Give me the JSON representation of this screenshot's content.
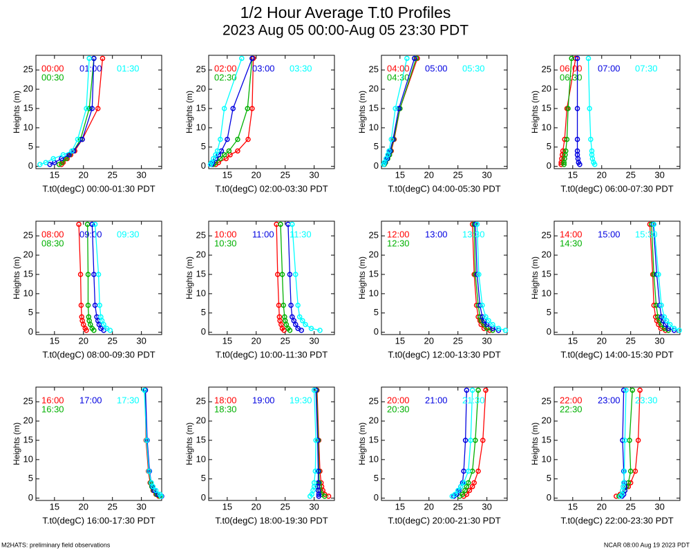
{
  "header": {
    "title": "1/2 Hour Average T.t0 Profiles",
    "subtitle": "2023 Aug 05 00:00-Aug 05 23:30 PDT"
  },
  "footer": {
    "left": "M2HATS: preliminary field observations",
    "right": "NCAR 08:00 Aug 19 2023 PDT"
  },
  "chart_data": [
    {
      "type": "line",
      "xlabel": "T.t0(degC) 00:00-01:30 PDT",
      "ylabel": "Heights (m)",
      "xlim": [
        11.8,
        33.5
      ],
      "ylim": [
        -0.6,
        28.8
      ],
      "xticks": [
        15,
        20,
        25,
        30
      ],
      "yticks": [
        0,
        5,
        10,
        15,
        20,
        25
      ],
      "heights": [
        0.5,
        1,
        2,
        3,
        4,
        7,
        15,
        28
      ],
      "series": [
        {
          "name": "00:00",
          "color": "#ff0000",
          "x": [
            16.2,
            16.5,
            17.2,
            17.8,
            18.5,
            19.8,
            22.5,
            23.3
          ]
        },
        {
          "name": "00:30",
          "color": "#00b000",
          "x": [
            15.8,
            16.3,
            17.0,
            17.6,
            18.3,
            19.5,
            21.0,
            21.8
          ]
        },
        {
          "name": "01:00",
          "color": "#0000e0",
          "x": [
            14.2,
            15.0,
            16.2,
            17.5,
            18.3,
            19.8,
            21.5,
            21.8
          ]
        },
        {
          "name": "01:30",
          "color": "#00ffff",
          "x": [
            12.5,
            13.5,
            14.8,
            16.5,
            18.0,
            19.0,
            20.5,
            21.0
          ]
        }
      ]
    },
    {
      "type": "line",
      "xlabel": "T.t0(degC) 02:00-03:30 PDT",
      "ylabel": "Heights (m)",
      "xlim": [
        11.8,
        33.5
      ],
      "ylim": [
        -0.6,
        28.8
      ],
      "xticks": [
        15,
        20,
        25,
        30
      ],
      "yticks": [
        0,
        5,
        10,
        15,
        20,
        25
      ],
      "heights": [
        0.5,
        1,
        2,
        3,
        4,
        7,
        15,
        28
      ],
      "series": [
        {
          "name": "02:00",
          "color": "#ff0000",
          "x": [
            13.0,
            13.5,
            14.8,
            15.5,
            16.8,
            18.6,
            19.3,
            19.5
          ]
        },
        {
          "name": "02:30",
          "color": "#00b000",
          "x": [
            12.6,
            13.0,
            13.8,
            14.5,
            15.3,
            16.8,
            18.5,
            19.3
          ]
        },
        {
          "name": "03:00",
          "color": "#0000e0",
          "x": [
            12.3,
            12.5,
            13.0,
            13.5,
            14.0,
            15.0,
            16.0,
            19.3
          ]
        },
        {
          "name": "03:30",
          "color": "#00ffff",
          "x": [
            12.1,
            12.3,
            12.6,
            13.0,
            13.3,
            13.8,
            14.5,
            17.5
          ]
        }
      ]
    },
    {
      "type": "line",
      "xlabel": "T.t0(degC) 04:00-05:30 PDT",
      "ylabel": "Heights (m)",
      "xlim": [
        11.8,
        33.5
      ],
      "ylim": [
        -0.6,
        28.8
      ],
      "xticks": [
        15,
        20,
        25,
        30
      ],
      "yticks": [
        0,
        5,
        10,
        15,
        20,
        25
      ],
      "heights": [
        0.5,
        1,
        2,
        3,
        4,
        7,
        15,
        28
      ],
      "series": [
        {
          "name": "04:00",
          "color": "#ff0000",
          "x": [
            12.3,
            12.5,
            12.8,
            13.2,
            13.5,
            14.0,
            15.0,
            18.0
          ]
        },
        {
          "name": "04:30",
          "color": "#00b000",
          "x": [
            12.3,
            12.5,
            12.9,
            13.2,
            13.4,
            13.9,
            15.0,
            17.8
          ]
        },
        {
          "name": "05:00",
          "color": "#0000e0",
          "x": [
            12.2,
            12.4,
            12.8,
            13.0,
            13.3,
            13.8,
            14.8,
            17.5
          ]
        },
        {
          "name": "05:30",
          "color": "#00ffff",
          "x": [
            12.2,
            12.3,
            12.6,
            12.9,
            13.1,
            13.5,
            14.2,
            16.2
          ]
        }
      ]
    },
    {
      "type": "line",
      "xlabel": "T.t0(degC) 06:00-07:30 PDT",
      "ylabel": "Heights (m)",
      "xlim": [
        11.8,
        33.5
      ],
      "ylim": [
        -0.6,
        28.8
      ],
      "xticks": [
        15,
        20,
        25,
        30
      ],
      "yticks": [
        0,
        5,
        10,
        15,
        20,
        25
      ],
      "heights": [
        0.5,
        1,
        2,
        3,
        4,
        7,
        15,
        28
      ],
      "series": [
        {
          "name": "06:00",
          "color": "#ff0000",
          "x": [
            13.0,
            13.0,
            13.1,
            13.2,
            13.3,
            13.6,
            14.0,
            15.5
          ]
        },
        {
          "name": "06:30",
          "color": "#00b000",
          "x": [
            13.5,
            13.5,
            13.6,
            13.7,
            13.8,
            14.0,
            14.2,
            14.8
          ]
        },
        {
          "name": "07:00",
          "color": "#0000e0",
          "x": [
            16.2,
            16.0,
            15.9,
            15.8,
            15.8,
            15.8,
            15.8,
            15.8
          ]
        },
        {
          "name": "07:30",
          "color": "#00ffff",
          "x": [
            18.8,
            18.6,
            18.4,
            18.3,
            18.3,
            18.1,
            17.9,
            17.7
          ]
        }
      ]
    },
    {
      "type": "line",
      "xlabel": "T.t0(degC) 08:00-09:30 PDT",
      "ylabel": "Heights (m)",
      "xlim": [
        11.8,
        33.5
      ],
      "ylim": [
        -0.6,
        28.8
      ],
      "xticks": [
        15,
        20,
        25,
        30
      ],
      "yticks": [
        0,
        5,
        10,
        15,
        20,
        25
      ],
      "heights": [
        0.5,
        1,
        2,
        3,
        4,
        7,
        15,
        28
      ],
      "series": [
        {
          "name": "08:00",
          "color": "#ff0000",
          "x": [
            20.5,
            20.3,
            20.0,
            19.8,
            19.7,
            19.6,
            19.5,
            19.2
          ]
        },
        {
          "name": "08:30",
          "color": "#00b000",
          "x": [
            21.8,
            21.5,
            21.2,
            21.0,
            20.9,
            20.8,
            20.8,
            20.7
          ]
        },
        {
          "name": "09:00",
          "color": "#0000e0",
          "x": [
            23.5,
            23.0,
            22.7,
            22.5,
            22.3,
            22.0,
            21.8,
            21.5
          ]
        },
        {
          "name": "09:30",
          "color": "#00ffff",
          "x": [
            24.6,
            24.0,
            23.5,
            23.2,
            23.0,
            22.8,
            22.6,
            22.0
          ]
        }
      ]
    },
    {
      "type": "line",
      "xlabel": "T.t0(degC) 10:00-11:30 PDT",
      "ylabel": "Heights (m)",
      "xlim": [
        11.8,
        33.5
      ],
      "ylim": [
        -0.6,
        28.8
      ],
      "xticks": [
        15,
        20,
        25,
        30
      ],
      "yticks": [
        0,
        5,
        10,
        15,
        20,
        25
      ],
      "heights": [
        0.5,
        1,
        2,
        3,
        4,
        7,
        15,
        28
      ],
      "series": [
        {
          "name": "10:00",
          "color": "#ff0000",
          "x": [
            24.8,
            24.5,
            24.3,
            24.1,
            24.0,
            23.9,
            23.7,
            23.5
          ]
        },
        {
          "name": "10:30",
          "color": "#00b000",
          "x": [
            25.8,
            25.5,
            25.2,
            25.0,
            24.9,
            24.7,
            24.5,
            24.2
          ]
        },
        {
          "name": "11:00",
          "color": "#0000e0",
          "x": [
            27.8,
            27.2,
            26.8,
            26.5,
            26.2,
            26.0,
            25.8,
            25.5
          ]
        },
        {
          "name": "11:30",
          "color": "#00ffff",
          "x": [
            31.0,
            29.5,
            28.5,
            28.0,
            27.5,
            27.2,
            26.8,
            26.2
          ]
        }
      ]
    },
    {
      "type": "line",
      "xlabel": "T.t0(degC) 12:00-13:30 PDT",
      "ylabel": "Heights (m)",
      "xlim": [
        11.8,
        33.5
      ],
      "ylim": [
        -0.6,
        28.8
      ],
      "xticks": [
        15,
        20,
        25,
        30
      ],
      "yticks": [
        0,
        5,
        10,
        15,
        20,
        25
      ],
      "heights": [
        0.5,
        1,
        2,
        3,
        4,
        7,
        15,
        28
      ],
      "series": [
        {
          "name": "12:00",
          "color": "#ff0000",
          "x": [
            30.5,
            29.5,
            29.0,
            28.8,
            28.5,
            28.2,
            27.8,
            27.5
          ]
        },
        {
          "name": "12:30",
          "color": "#00b000",
          "x": [
            31.0,
            30.0,
            29.5,
            29.0,
            28.8,
            28.5,
            28.0,
            27.8
          ]
        },
        {
          "name": "13:00",
          "color": "#0000e0",
          "x": [
            32.0,
            31.0,
            30.0,
            29.5,
            29.2,
            28.8,
            28.3,
            28.0
          ]
        },
        {
          "name": "13:30",
          "color": "#00ffff",
          "x": [
            33.2,
            32.0,
            31.0,
            30.3,
            29.8,
            29.2,
            28.6,
            28.3
          ]
        }
      ]
    },
    {
      "type": "line",
      "xlabel": "T.t0(degC) 14:00-15:30 PDT",
      "ylabel": "Heights (m)",
      "xlim": [
        11.8,
        33.5
      ],
      "ylim": [
        -0.6,
        28.8
      ],
      "xticks": [
        15,
        20,
        25,
        30
      ],
      "yticks": [
        0,
        5,
        10,
        15,
        20,
        25
      ],
      "heights": [
        0.5,
        1,
        2,
        3,
        4,
        7,
        15,
        28
      ],
      "series": [
        {
          "name": "14:00",
          "color": "#ff0000",
          "x": [
            31.0,
            30.2,
            29.8,
            29.5,
            29.3,
            29.0,
            28.8,
            28.3
          ]
        },
        {
          "name": "14:30",
          "color": "#00b000",
          "x": [
            31.5,
            30.8,
            30.3,
            30.0,
            29.7,
            29.4,
            29.0,
            28.6
          ]
        },
        {
          "name": "15:00",
          "color": "#0000e0",
          "x": [
            32.5,
            31.5,
            31.0,
            30.6,
            30.3,
            30.0,
            29.5,
            28.9
          ]
        },
        {
          "name": "15:30",
          "color": "#00ffff",
          "x": [
            33.4,
            32.5,
            31.8,
            31.2,
            30.8,
            30.3,
            29.8,
            29.0
          ]
        }
      ]
    },
    {
      "type": "line",
      "xlabel": "T.t0(degC) 16:00-17:30 PDT",
      "ylabel": "Heights (m)",
      "xlim": [
        11.8,
        33.5
      ],
      "ylim": [
        -0.6,
        28.8
      ],
      "xticks": [
        15,
        20,
        25,
        30
      ],
      "yticks": [
        0,
        5,
        10,
        15,
        20,
        25
      ],
      "heights": [
        0.5,
        1,
        2,
        3,
        4,
        7,
        15,
        28
      ],
      "series": [
        {
          "name": "16:00",
          "color": "#ff0000",
          "x": [
            33.0,
            32.5,
            32.0,
            31.8,
            31.5,
            31.2,
            30.8,
            30.6
          ]
        },
        {
          "name": "16:30",
          "color": "#00b000",
          "x": [
            33.2,
            32.6,
            32.1,
            31.8,
            31.6,
            31.3,
            30.9,
            30.6
          ]
        },
        {
          "name": "17:00",
          "color": "#0000e0",
          "x": [
            33.5,
            32.8,
            32.2,
            31.9,
            31.7,
            31.4,
            31.0,
            30.7
          ]
        },
        {
          "name": "17:30",
          "color": "#00ffff",
          "x": [
            33.4,
            33.2,
            32.5,
            32.0,
            31.7,
            31.3,
            30.9,
            30.5
          ]
        }
      ]
    },
    {
      "type": "line",
      "xlabel": "T.t0(degC) 18:00-19:30 PDT",
      "ylabel": "Heights (m)",
      "xlim": [
        11.8,
        33.5
      ],
      "ylim": [
        -0.6,
        28.8
      ],
      "xticks": [
        15,
        20,
        25,
        30
      ],
      "yticks": [
        0,
        5,
        10,
        15,
        20,
        25
      ],
      "heights": [
        0.5,
        1,
        2,
        3,
        4,
        7,
        15,
        28
      ],
      "series": [
        {
          "name": "18:00",
          "color": "#ff0000",
          "x": [
            32.5,
            31.8,
            31.5,
            31.3,
            31.2,
            31.0,
            30.8,
            30.5
          ]
        },
        {
          "name": "18:30",
          "color": "#00b000",
          "x": [
            31.8,
            31.3,
            31.0,
            30.9,
            30.9,
            30.8,
            30.7,
            30.4
          ]
        },
        {
          "name": "19:00",
          "color": "#0000e0",
          "x": [
            30.8,
            30.8,
            30.7,
            30.6,
            30.7,
            30.7,
            30.6,
            30.3
          ]
        },
        {
          "name": "19:30",
          "color": "#00ffff",
          "x": [
            29.3,
            29.6,
            29.8,
            30.0,
            30.0,
            30.2,
            30.3,
            30.0
          ]
        }
      ]
    },
    {
      "type": "line",
      "xlabel": "T.t0(degC) 20:00-21:30 PDT",
      "ylabel": "Heights (m)",
      "xlim": [
        11.8,
        33.5
      ],
      "ylim": [
        -0.6,
        28.8
      ],
      "xticks": [
        15,
        20,
        25,
        30
      ],
      "yticks": [
        0,
        5,
        10,
        15,
        20,
        25
      ],
      "heights": [
        0.5,
        1,
        2,
        3,
        4,
        7,
        15,
        28
      ],
      "series": [
        {
          "name": "20:00",
          "color": "#ff0000",
          "x": [
            26.0,
            26.5,
            27.0,
            27.5,
            27.8,
            28.5,
            29.3,
            29.8
          ]
        },
        {
          "name": "20:30",
          "color": "#00b000",
          "x": [
            25.3,
            25.8,
            26.2,
            26.5,
            26.8,
            27.5,
            28.0,
            28.5
          ]
        },
        {
          "name": "21:00",
          "color": "#0000e0",
          "x": [
            24.3,
            24.8,
            25.2,
            25.5,
            25.8,
            26.0,
            26.3,
            26.5
          ]
        },
        {
          "name": "21:30",
          "color": "#00ffff",
          "x": [
            24.0,
            24.5,
            25.0,
            25.5,
            26.0,
            26.8,
            27.2,
            27.5
          ]
        }
      ]
    },
    {
      "type": "line",
      "xlabel": "T.t0(degC) 22:00-23:30 PDT",
      "ylabel": "Heights (m)",
      "xlim": [
        11.8,
        33.5
      ],
      "ylim": [
        -0.6,
        28.8
      ],
      "xticks": [
        15,
        20,
        25,
        30
      ],
      "yticks": [
        0,
        5,
        10,
        15,
        20,
        25
      ],
      "heights": [
        0.5,
        1,
        2,
        3,
        4,
        7,
        15,
        28
      ],
      "series": [
        {
          "name": "22:00",
          "color": "#ff0000",
          "x": [
            22.5,
            23.2,
            24.0,
            24.6,
            25.0,
            25.8,
            26.3,
            26.6
          ]
        },
        {
          "name": "22:30",
          "color": "#00b000",
          "x": [
            23.0,
            23.5,
            24.0,
            24.3,
            24.6,
            25.0,
            24.8,
            25.3
          ]
        },
        {
          "name": "23:00",
          "color": "#0000e0",
          "x": [
            23.5,
            23.8,
            24.0,
            24.0,
            23.9,
            23.8,
            23.6,
            23.8
          ]
        },
        {
          "name": "23:30",
          "color": "#00ffff",
          "x": [
            23.2,
            23.5,
            23.6,
            23.7,
            23.8,
            23.9,
            24.0,
            24.2
          ]
        }
      ]
    }
  ]
}
